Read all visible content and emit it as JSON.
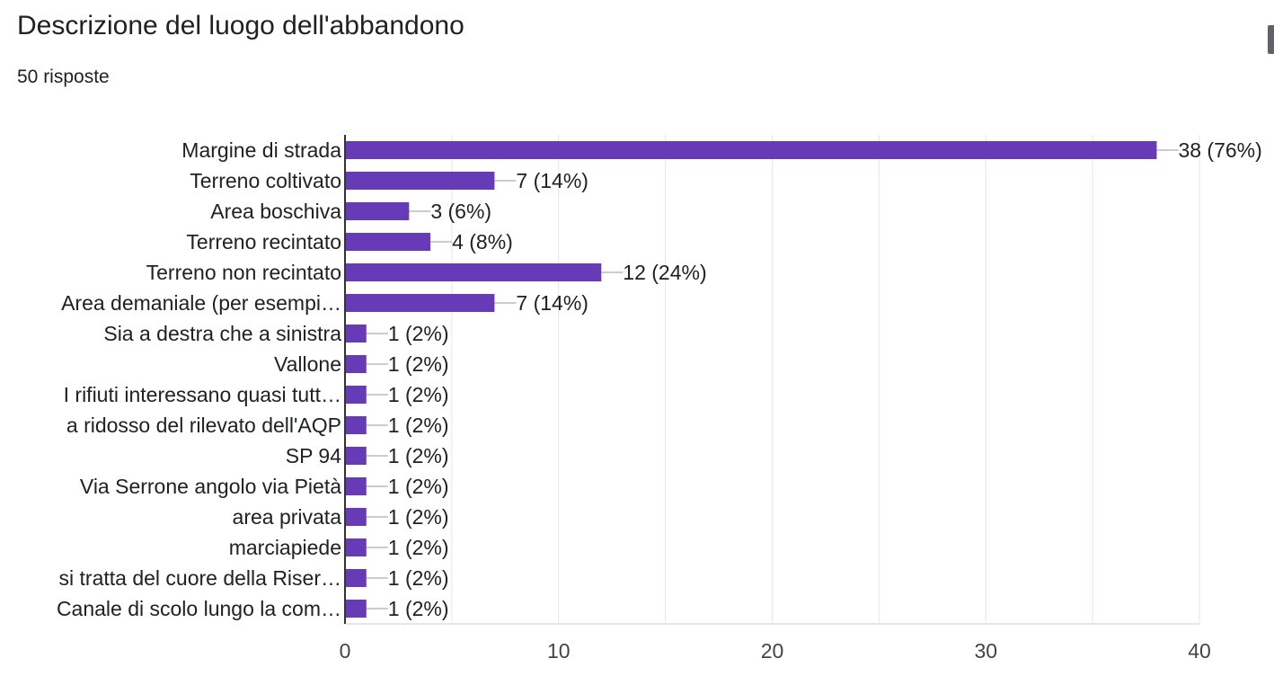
{
  "header": {
    "title": "Descrizione del luogo dell'abbandono",
    "responses": "50 risposte"
  },
  "chart_data": {
    "type": "bar",
    "orientation": "horizontal",
    "categories": [
      "Margine di strada",
      "Terreno coltivato",
      "Area boschiva",
      "Terreno recintato",
      "Terreno non recintato",
      "Area demaniale (per esempi…",
      "Sia a destra che a sinistra",
      "Vallone",
      "I rifiuti interessano quasi tutt…",
      "a ridosso del rilevato dell'AQP",
      "SP 94",
      "Via Serrone angolo via Pietà",
      "area privata",
      "marciapiede",
      "si tratta del cuore della Riser…",
      "Canale di scolo lungo la com…"
    ],
    "values": [
      38,
      7,
      3,
      4,
      12,
      7,
      1,
      1,
      1,
      1,
      1,
      1,
      1,
      1,
      1,
      1
    ],
    "data_labels": [
      "38 (76%)",
      "7 (14%)",
      "3 (6%)",
      "4 (8%)",
      "12 (24%)",
      "7 (14%)",
      "1 (2%)",
      "1 (2%)",
      "1 (2%)",
      "1 (2%)",
      "1 (2%)",
      "1 (2%)",
      "1 (2%)",
      "1 (2%)",
      "1 (2%)",
      "1 (2%)"
    ],
    "xlim": [
      0,
      40
    ],
    "xticks": [
      0,
      10,
      20,
      30,
      40
    ],
    "minor_grid_step": 5,
    "grid": true,
    "bar_color": "#673ab7",
    "grid_color": "#e6e6e6",
    "axis_color": "#333333"
  }
}
